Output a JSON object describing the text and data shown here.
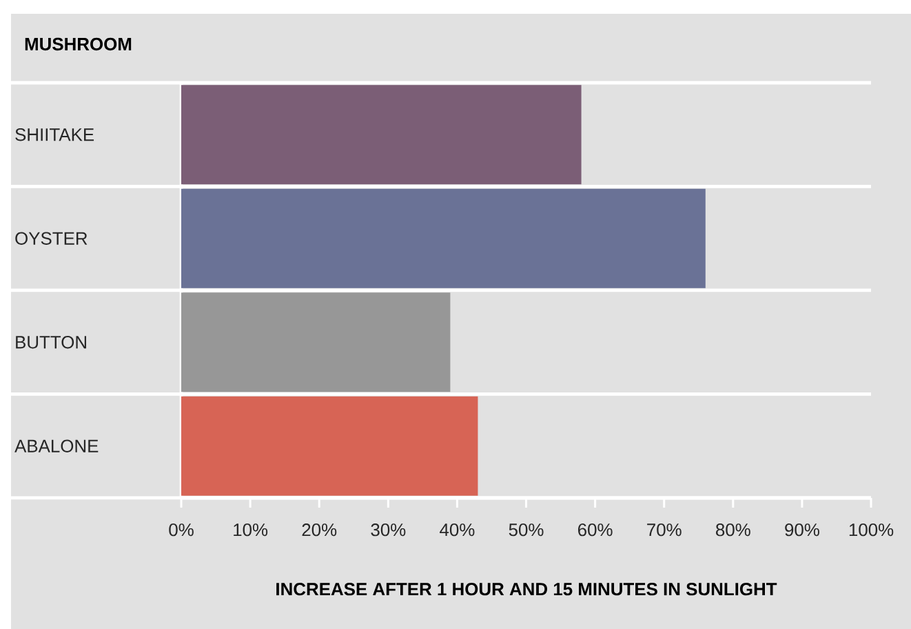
{
  "chart_data": {
    "type": "bar",
    "orientation": "horizontal",
    "ylabel": "MUSHROOM",
    "xlabel": "INCREASE AFTER 1 HOUR AND 15 MINUTES IN SUNLIGHT",
    "categories": [
      "SHIITAKE",
      "OYSTER",
      "BUTTON",
      "ABALONE"
    ],
    "values": [
      58,
      76,
      39,
      43
    ],
    "colors": [
      "#7b5e76",
      "#6a7296",
      "#979797",
      "#d76455"
    ],
    "xlim": [
      0,
      100
    ],
    "xticks": [
      {
        "value": 0,
        "label": "0%"
      },
      {
        "value": 10,
        "label": "10%"
      },
      {
        "value": 20,
        "label": "20%"
      },
      {
        "value": 30,
        "label": "30%"
      },
      {
        "value": 40,
        "label": "40%"
      },
      {
        "value": 50,
        "label": "50%"
      },
      {
        "value": 60,
        "label": "60%"
      },
      {
        "value": 70,
        "label": "70%"
      },
      {
        "value": 80,
        "label": "80%"
      },
      {
        "value": 90,
        "label": "90%"
      },
      {
        "value": 100,
        "label": "100%"
      }
    ]
  }
}
